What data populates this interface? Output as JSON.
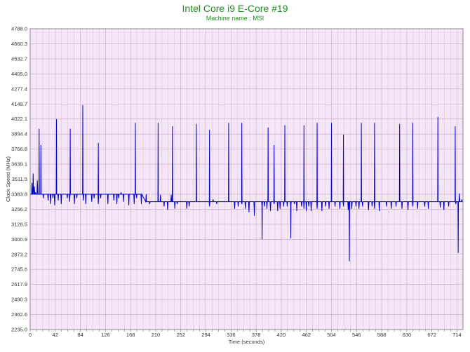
{
  "chart_data": {
    "type": "line",
    "title": "Intel Core i9 E-Core #19",
    "subtitle": "Machine name : MSI",
    "xlabel": "Time (seconds)",
    "ylabel": "Clock Speed (MHz)",
    "xlim": [
      0,
      724
    ],
    "ylim": [
      2235.0,
      4788.0
    ],
    "x_ticks": [
      0,
      42,
      84,
      126,
      168,
      210,
      252,
      294,
      336,
      378,
      420,
      462,
      504,
      546,
      588,
      630,
      672,
      714
    ],
    "y_ticks": [
      2235.0,
      2362.6,
      2490.3,
      2617.9,
      2745.6,
      2873.2,
      3000.9,
      3128.5,
      3256.2,
      3383.8,
      3511.5,
      3639.1,
      3766.8,
      3894.4,
      4022.1,
      4149.7,
      4277.4,
      4405.0,
      4532.7,
      4660.3,
      4788.0
    ],
    "grid": true,
    "colors": {
      "background": "#f5e6f7",
      "grid": "#c7a3c7",
      "line": "#0000cc",
      "title": "#1f8a1f"
    },
    "series": [
      {
        "baseline_segments": [
          [
            0,
            20,
            3383.8
          ],
          [
            20,
            190,
            3383.8
          ],
          [
            190,
            724,
            3320.0
          ]
        ],
        "noise": [
          [
            3,
            3480
          ],
          [
            5,
            3560
          ],
          [
            7,
            3450
          ],
          [
            9,
            3400
          ],
          [
            12,
            3500
          ],
          [
            22,
            3350
          ],
          [
            26,
            3383.8
          ],
          [
            30,
            3330
          ],
          [
            34,
            3300
          ],
          [
            38,
            3350
          ],
          [
            41,
            3290
          ],
          [
            47,
            3330
          ],
          [
            52,
            3300
          ],
          [
            56,
            3383.8
          ],
          [
            62,
            3350
          ],
          [
            66,
            3320
          ],
          [
            70,
            3383.8
          ],
          [
            74,
            3300
          ],
          [
            78,
            3350
          ],
          [
            89,
            3330
          ],
          [
            93,
            3300
          ],
          [
            97,
            3383.8
          ],
          [
            103,
            3320
          ],
          [
            107,
            3350
          ],
          [
            110,
            3383.8
          ],
          [
            114,
            3300
          ],
          [
            118,
            3350
          ],
          [
            130,
            3300
          ],
          [
            134,
            3383.8
          ],
          [
            140,
            3330
          ],
          [
            145,
            3300
          ],
          [
            148,
            3350
          ],
          [
            152,
            3400
          ],
          [
            156,
            3320
          ],
          [
            160,
            3383.8
          ],
          [
            165,
            3290
          ],
          [
            170,
            3383.8
          ],
          [
            174,
            3300
          ],
          [
            178,
            3350
          ],
          [
            186,
            3300
          ],
          [
            194,
            3383.8
          ],
          [
            200,
            3300
          ],
          [
            218,
            3380
          ],
          [
            224,
            3280
          ],
          [
            230,
            3250
          ],
          [
            236,
            3380
          ],
          [
            242,
            3260
          ],
          [
            246,
            3300
          ],
          [
            262,
            3260
          ],
          [
            266,
            3280
          ],
          [
            300,
            3280
          ],
          [
            306,
            3340
          ],
          [
            312,
            3300
          ],
          [
            342,
            3260
          ],
          [
            348,
            3280
          ],
          [
            354,
            3300
          ],
          [
            360,
            3260
          ],
          [
            366,
            3230
          ],
          [
            375,
            3200
          ],
          [
            388,
            3250
          ],
          [
            392,
            3280
          ],
          [
            396,
            3260
          ],
          [
            402,
            3240
          ],
          [
            408,
            3300
          ],
          [
            414,
            3240
          ],
          [
            418,
            3260
          ],
          [
            424,
            3280
          ],
          [
            430,
            3280
          ],
          [
            436,
            3260
          ],
          [
            442,
            3300
          ],
          [
            446,
            3240
          ],
          [
            454,
            3280
          ],
          [
            458,
            3260
          ],
          [
            462,
            3240
          ],
          [
            466,
            3280
          ],
          [
            470,
            3240
          ],
          [
            480,
            3260
          ],
          [
            488,
            3240
          ],
          [
            494,
            3280
          ],
          [
            500,
            3260
          ],
          [
            510,
            3280
          ],
          [
            518,
            3260
          ],
          [
            524,
            3280
          ],
          [
            532,
            3250
          ],
          [
            538,
            3260
          ],
          [
            545,
            3280
          ],
          [
            550,
            3260
          ],
          [
            556,
            3280
          ],
          [
            566,
            3250
          ],
          [
            572,
            3280
          ],
          [
            576,
            3260
          ],
          [
            584,
            3240
          ],
          [
            596,
            3280
          ],
          [
            604,
            3260
          ],
          [
            612,
            3280
          ],
          [
            622,
            3260
          ],
          [
            632,
            3250
          ],
          [
            640,
            3280
          ],
          [
            648,
            3260
          ],
          [
            660,
            3280
          ],
          [
            666,
            3260
          ],
          [
            686,
            3270
          ],
          [
            692,
            3250
          ],
          [
            700,
            3280
          ],
          [
            712,
            3300
          ],
          [
            718,
            3390
          ],
          [
            722,
            3340
          ]
        ],
        "spikes": [
          [
            15,
            3940
          ],
          [
            18,
            3800
          ],
          [
            44,
            4020
          ],
          [
            67,
            3940
          ],
          [
            88,
            4140
          ],
          [
            114,
            3820
          ],
          [
            176,
            3990
          ],
          [
            214,
            3990
          ],
          [
            238,
            3960
          ],
          [
            278,
            3980
          ],
          [
            300,
            3930
          ],
          [
            332,
            3990
          ],
          [
            354,
            3990
          ],
          [
            398,
            3950
          ],
          [
            408,
            3800
          ],
          [
            426,
            3970
          ],
          [
            458,
            3970
          ],
          [
            480,
            3990
          ],
          [
            504,
            3990
          ],
          [
            524,
            3890
          ],
          [
            554,
            3990
          ],
          [
            576,
            3990
          ],
          [
            618,
            3980
          ],
          [
            640,
            3990
          ],
          [
            682,
            4040
          ],
          [
            711,
            3960
          ]
        ],
        "dips": [
          [
            388,
            3000
          ],
          [
            436,
            3010
          ],
          [
            534,
            2815
          ],
          [
            716,
            2885
          ]
        ]
      }
    ]
  }
}
